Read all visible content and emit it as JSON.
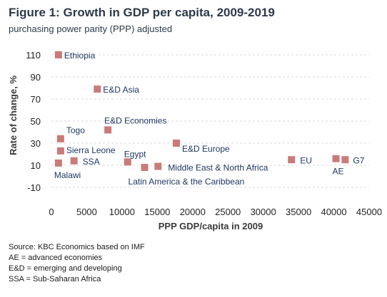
{
  "header": {
    "title": "Figure 1: Growth in GDP per capita, 2009-2019",
    "subtitle": "purchasing power parity (PPP) adjusted"
  },
  "colors": {
    "marker": "#c97b78",
    "grid": "#d9d9d9",
    "label_text": "#1f3864",
    "axis_title": "#3a3a3a"
  },
  "chart_data": {
    "type": "scatter",
    "xlabel": "PPP GDP/capita in 2009",
    "ylabel": "Rate of change, %",
    "xlim": [
      0,
      45000
    ],
    "ylim": [
      -10,
      110
    ],
    "x_ticks": [
      0,
      5000,
      10000,
      15000,
      20000,
      25000,
      30000,
      35000,
      40000,
      45000
    ],
    "y_ticks": [
      -10,
      10,
      30,
      50,
      70,
      90,
      110
    ],
    "grid": "horizontal dashed",
    "legend": "none",
    "points": [
      {
        "label": "Ethiopia",
        "x": 1000,
        "y": 110
      },
      {
        "label": "E&D Asia",
        "x": 6500,
        "y": 79
      },
      {
        "label": "E&D Economies",
        "x": 8000,
        "y": 42
      },
      {
        "label": "Togo",
        "x": 1300,
        "y": 34
      },
      {
        "label": "Sierra Leone",
        "x": 1300,
        "y": 23
      },
      {
        "label": "SSA",
        "x": 3200,
        "y": 14
      },
      {
        "label": "Malawi",
        "x": 1000,
        "y": 12
      },
      {
        "label": "Egypt",
        "x": 10800,
        "y": 13
      },
      {
        "label": "Latin America & the Caribbean",
        "x": 13200,
        "y": 8
      },
      {
        "label": "Middle East & North Africa",
        "x": 15100,
        "y": 9
      },
      {
        "label": "E&D Europe",
        "x": 17700,
        "y": 30
      },
      {
        "label": "EU",
        "x": 34000,
        "y": 15
      },
      {
        "label": "AE",
        "x": 40300,
        "y": 16
      },
      {
        "label": "G7",
        "x": 41600,
        "y": 15
      }
    ]
  },
  "notes": [
    "Source: KBC Economics based on IMF",
    "AE = advanced economies",
    "E&D = emerging and developing",
    "SSA = Sub-Saharan Africa"
  ]
}
